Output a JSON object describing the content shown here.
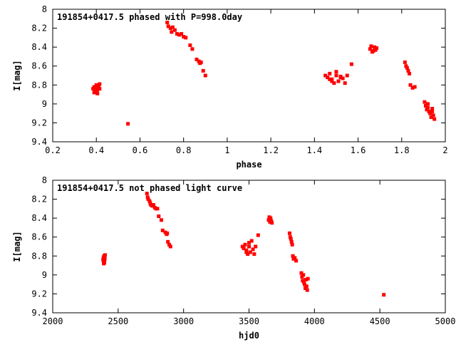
{
  "colors": {
    "points": "#ff0000",
    "axes": "#000000",
    "background": "#ffffff"
  },
  "chart_data": [
    {
      "type": "scatter",
      "title": "191854+0417.5 phased with P=998.0day",
      "xlabel": "phase",
      "ylabel": "I[mag]",
      "xlim": [
        0.2,
        2
      ],
      "ylim": [
        8,
        9.4
      ],
      "y_inverted": true,
      "xticks": [
        "0.2",
        "0.4",
        "0.6",
        "0.8",
        "1",
        "1.2",
        "1.4",
        "1.6",
        "1.8",
        "2"
      ],
      "yticks": [
        "8",
        "8.2",
        "8.4",
        "8.6",
        "8.8",
        "9",
        "9.2",
        "9.4"
      ],
      "grid": false,
      "series": [
        {
          "x": [
            0.385,
            0.39,
            0.395,
            0.4,
            0.405,
            0.41,
            0.415,
            0.39,
            0.4,
            0.41,
            0.395,
            0.405,
            0.415,
            0.4,
            0.545,
            0.725,
            0.73,
            0.74,
            0.75,
            0.76,
            0.745,
            0.77,
            0.78,
            0.79,
            0.8,
            0.81,
            0.83,
            0.84,
            0.86,
            0.87,
            0.875,
            0.88,
            0.89,
            0.9,
            1.45,
            1.46,
            1.47,
            1.48,
            1.49,
            1.5,
            1.51,
            1.52,
            1.53,
            1.54,
            1.55,
            1.57,
            1.48,
            1.5,
            1.52,
            1.47,
            1.655,
            1.66,
            1.67,
            1.675,
            1.68,
            1.665,
            1.685,
            1.815,
            1.82,
            1.825,
            1.83,
            1.835,
            1.84,
            1.85,
            1.86,
            1.905,
            1.91,
            1.915,
            1.92,
            1.925,
            1.93,
            1.935,
            1.94,
            1.945,
            1.95,
            1.92,
            1.94
          ],
          "y": [
            8.84,
            8.82,
            8.86,
            8.8,
            8.85,
            8.83,
            8.79,
            8.88,
            8.87,
            8.81,
            8.86,
            8.89,
            8.84,
            8.83,
            9.21,
            8.14,
            8.18,
            8.2,
            8.19,
            8.22,
            8.24,
            8.26,
            8.27,
            8.26,
            8.29,
            8.3,
            8.38,
            8.42,
            8.53,
            8.55,
            8.57,
            8.56,
            8.65,
            8.7,
            8.7,
            8.72,
            8.68,
            8.74,
            8.78,
            8.7,
            8.76,
            8.72,
            8.73,
            8.78,
            8.7,
            8.58,
            8.76,
            8.66,
            8.71,
            8.74,
            8.42,
            8.39,
            8.44,
            8.4,
            8.43,
            8.45,
            8.41,
            8.56,
            8.6,
            8.62,
            8.65,
            8.68,
            8.8,
            8.83,
            8.82,
            8.98,
            9.02,
            9.06,
            9.0,
            9.08,
            9.1,
            9.14,
            9.05,
            9.12,
            9.16,
            9.04,
            9.08
          ]
        }
      ]
    },
    {
      "type": "scatter",
      "title": "191854+0417.5 not phased light curve",
      "xlabel": "hjd0",
      "ylabel": "I[mag]",
      "xlim": [
        2000,
        5000
      ],
      "ylim": [
        8,
        9.4
      ],
      "y_inverted": true,
      "xticks": [
        "2000",
        "2500",
        "3000",
        "3500",
        "4000",
        "4500",
        "5000"
      ],
      "yticks": [
        "8",
        "8.2",
        "8.4",
        "8.6",
        "8.8",
        "9",
        "9.2",
        "9.4"
      ],
      "grid": false,
      "series": [
        {
          "x": [
            2385,
            2388,
            2390,
            2392,
            2395,
            2398,
            2400,
            2390,
            2395,
            2720,
            2725,
            2730,
            2740,
            2745,
            2750,
            2760,
            2770,
            2780,
            2790,
            2800,
            2810,
            2830,
            2840,
            2860,
            2870,
            2875,
            2880,
            2890,
            2900,
            3450,
            3460,
            3470,
            3480,
            3490,
            3500,
            3510,
            3520,
            3530,
            3540,
            3550,
            3570,
            3480,
            3500,
            3650,
            3655,
            3660,
            3665,
            3670,
            3675,
            3810,
            3815,
            3820,
            3825,
            3830,
            3835,
            3840,
            3850,
            3860,
            3900,
            3905,
            3910,
            3915,
            3920,
            3925,
            3930,
            3935,
            3940,
            3945,
            3950,
            4530
          ],
          "y": [
            8.84,
            8.82,
            8.86,
            8.8,
            8.85,
            8.83,
            8.79,
            8.88,
            8.87,
            8.14,
            8.18,
            8.2,
            8.22,
            8.24,
            8.26,
            8.27,
            8.26,
            8.29,
            8.3,
            8.3,
            8.38,
            8.42,
            8.53,
            8.55,
            8.57,
            8.56,
            8.65,
            8.68,
            8.7,
            8.7,
            8.72,
            8.68,
            8.74,
            8.78,
            8.7,
            8.76,
            8.64,
            8.73,
            8.78,
            8.7,
            8.58,
            8.76,
            8.66,
            8.42,
            8.39,
            8.44,
            8.4,
            8.43,
            8.45,
            8.56,
            8.6,
            8.62,
            8.65,
            8.68,
            8.8,
            8.83,
            8.82,
            8.85,
            8.98,
            9.02,
            9.06,
            9.0,
            9.08,
            9.1,
            9.14,
            9.05,
            9.12,
            9.16,
            9.04,
            9.21
          ]
        }
      ]
    }
  ]
}
